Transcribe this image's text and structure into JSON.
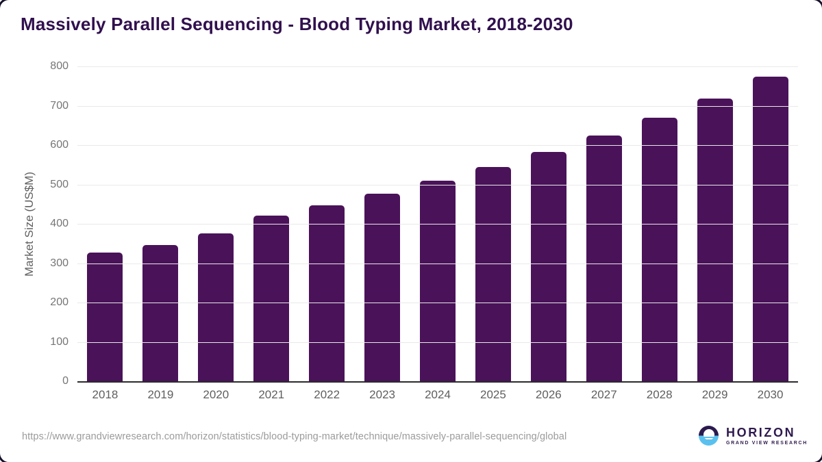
{
  "header": {
    "title": "Massively Parallel Sequencing - Blood Typing Market, 2018-2030"
  },
  "chart_data": {
    "type": "bar",
    "title": "Massively Parallel Sequencing - Blood Typing Market, 2018-2030",
    "categories": [
      "2018",
      "2019",
      "2020",
      "2021",
      "2022",
      "2023",
      "2024",
      "2025",
      "2026",
      "2027",
      "2028",
      "2029",
      "2030"
    ],
    "values": [
      327,
      346,
      376,
      421,
      447,
      477,
      509,
      545,
      583,
      624,
      670,
      718,
      774
    ],
    "xlabel": "",
    "ylabel": "Market Size (US$M)",
    "ylim": [
      0,
      800
    ],
    "yticks": [
      0,
      100,
      200,
      300,
      400,
      500,
      600,
      700,
      800
    ],
    "grid": "horizontal",
    "legend_position": "none",
    "bar_color": "#4a1259"
  },
  "footer": {
    "source_url": "https://www.grandviewresearch.com/horizon/statistics/blood-typing-market/technique/massively-parallel-sequencing/global",
    "logo": {
      "brand": "HORIZON",
      "tagline": "GRAND VIEW RESEARCH",
      "icon": "horizon-sun-icon"
    }
  },
  "colors": {
    "bar": "#4a1259",
    "title_text": "#31104e",
    "gridline": "#e9e9e9",
    "axis_line": "#2b2b2b",
    "tick_text": "#757575",
    "source_text": "#9b9b9b",
    "logo_dark": "#2b1a4e",
    "logo_blue": "#5ac1ef"
  }
}
